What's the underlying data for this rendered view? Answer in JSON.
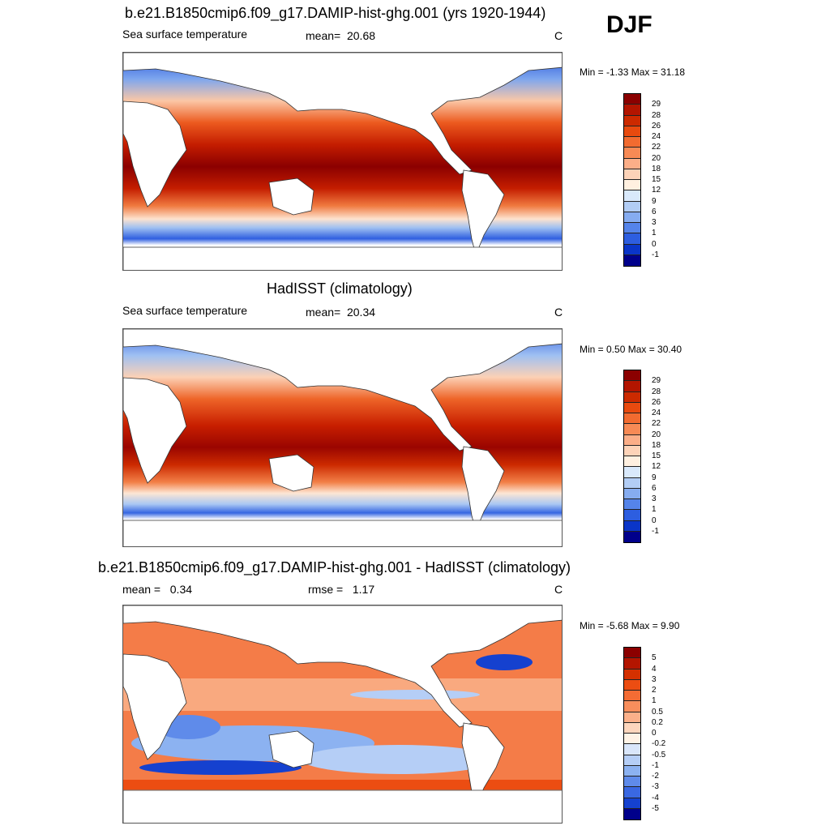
{
  "season": "DJF",
  "units": "C",
  "panels": [
    {
      "title": "b.e21.B1850cmip6.f09_g17.DAMIP-hist-ghg.001 (yrs 1920-1944)",
      "left_label": "Sea surface temperature",
      "stat_label": "mean=",
      "stat_value": "20.68",
      "units": "C",
      "minmax": "Min =  -1.33 Max =  31.18"
    },
    {
      "title": "HadISST (climatology)",
      "left_label": "Sea surface temperature",
      "stat_label": "mean=",
      "stat_value": "20.34",
      "units": "C",
      "minmax": "Min =   0.50 Max =  30.40"
    },
    {
      "title": "b.e21.B1850cmip6.f09_g17.DAMIP-hist-ghg.001 - HadISST (climatology)",
      "left_label": "mean =",
      "left_value": "0.34",
      "stat_label": "rmse =",
      "stat_value": "1.17",
      "units": "C",
      "minmax": "Min =  -5.68 Max =   9.90"
    }
  ],
  "sst_colorbar": {
    "levels": [
      "29",
      "28",
      "26",
      "24",
      "22",
      "20",
      "18",
      "15",
      "12",
      "9",
      "6",
      "3",
      "1",
      "0",
      "-1"
    ],
    "colors": [
      "#8b0000",
      "#b31500",
      "#cc2a00",
      "#e84a0f",
      "#f26b30",
      "#f78a55",
      "#fbae88",
      "#fdd3b8",
      "#fff0e0",
      "#d9e9fb",
      "#b2cdf5",
      "#86acf0",
      "#5584ea",
      "#2d5ee0",
      "#0a35c8",
      "#00008b"
    ]
  },
  "diff_colorbar": {
    "levels": [
      "5",
      "4",
      "3",
      "2",
      "1",
      "0.5",
      "0.2",
      "0",
      "-0.2",
      "-0.5",
      "-1",
      "-2",
      "-3",
      "-4",
      "-5"
    ],
    "colors": [
      "#8b0000",
      "#b31500",
      "#d43000",
      "#ec4d12",
      "#f46c34",
      "#f88e5c",
      "#fbb08a",
      "#fdd6bd",
      "#fff3e6",
      "#d9e6fa",
      "#b5cef6",
      "#8cb2f1",
      "#5f8bea",
      "#3a68e2",
      "#1541cf",
      "#00008b"
    ]
  }
}
